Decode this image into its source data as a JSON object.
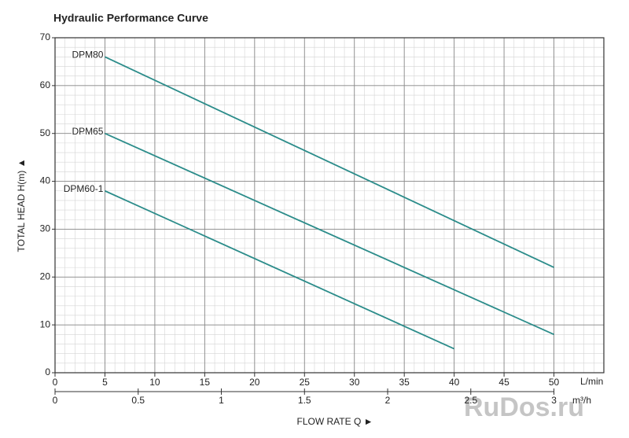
{
  "chart_data": {
    "type": "line",
    "title": "Hydraulic Performance Curve",
    "ylabel": "TOTAL HEAD H(m) ▲",
    "xlabel": "FLOW RATE Q ►",
    "x_unit": "L/min",
    "x2_unit": "m³/h",
    "xlim": [
      0,
      55
    ],
    "xticks": [
      0,
      5,
      10,
      15,
      20,
      25,
      30,
      35,
      40,
      45,
      50
    ],
    "x2lim": [
      0,
      3.3
    ],
    "x2ticks": [
      0,
      0.5,
      1,
      1.5,
      2,
      2.5,
      3
    ],
    "ylim": [
      0,
      70
    ],
    "yticks": [
      0,
      10,
      20,
      30,
      40,
      50,
      60,
      70
    ],
    "grid": true,
    "series": [
      {
        "name": "DPM80",
        "color": "#2b8c8a",
        "x": [
          5,
          50
        ],
        "values": [
          66,
          22
        ]
      },
      {
        "name": "DPM65",
        "color": "#2b8c8a",
        "x": [
          5,
          50
        ],
        "values": [
          50,
          8
        ]
      },
      {
        "name": "DPM60-1",
        "color": "#2b8c8a",
        "x": [
          5,
          40
        ],
        "values": [
          38,
          5
        ]
      }
    ],
    "watermark": "RuDos.ru"
  }
}
